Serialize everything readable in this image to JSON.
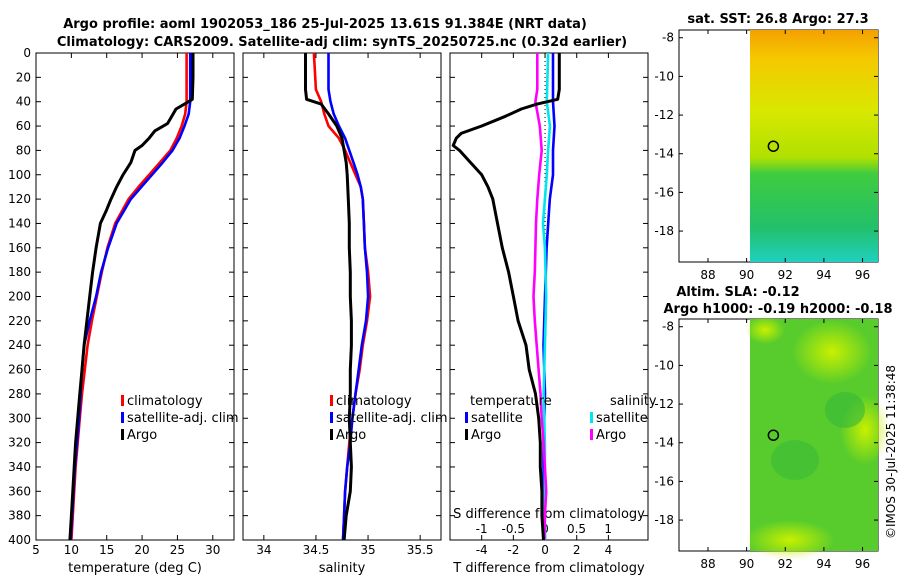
{
  "title_line1": "Argo profile: aoml 1902053_186 25-Jul-2025 13.61S 91.384E (NRT data)",
  "title_line2": "Climatology: CARS2009. Satellite-adj clim: synTS_20250725.nc (0.32d earlier)",
  "credit": "©IMOS 30-Jul-2025 11:38:48",
  "colors": {
    "climatology": "#ff0000",
    "satellite": "#0000ff",
    "argo": "#000000",
    "sal_satellite": "#00e5ee",
    "sal_argo": "#ff00ff"
  },
  "chart_data": [
    {
      "type": "line",
      "name": "temperature",
      "xlabel": "temperature (deg C)",
      "ylabel": "",
      "xlim": [
        5,
        33
      ],
      "ylim": [
        400,
        0
      ],
      "xticks": [
        "5",
        "10",
        "15",
        "20",
        "25",
        "30"
      ],
      "yticks": [
        "0",
        "20",
        "40",
        "60",
        "80",
        "100",
        "120",
        "140",
        "160",
        "180",
        "200",
        "220",
        "240",
        "260",
        "280",
        "300",
        "320",
        "340",
        "360",
        "380",
        "400"
      ],
      "legend": [
        "climatology",
        "satellite-adj. clim",
        "Argo"
      ],
      "series": [
        {
          "name": "climatology",
          "depth": [
            0,
            40,
            50,
            60,
            70,
            80,
            90,
            100,
            110,
            120,
            140,
            160,
            180,
            200,
            220,
            240,
            260,
            280,
            300,
            320,
            340,
            360,
            380,
            400
          ],
          "values": [
            26.3,
            26.3,
            26.1,
            25.6,
            24.9,
            24.0,
            22.5,
            21.0,
            19.5,
            18.1,
            16.2,
            15.1,
            14.3,
            13.6,
            12.9,
            12.3,
            11.9,
            11.5,
            11.2,
            10.9,
            10.6,
            10.4,
            10.2,
            10.0
          ]
        },
        {
          "name": "satellite-adj. clim",
          "depth": [
            0,
            40,
            50,
            60,
            70,
            80,
            90,
            100,
            110,
            120,
            140,
            160,
            180,
            200,
            220,
            240,
            260,
            280,
            300,
            320,
            340,
            360,
            380,
            400
          ],
          "values": [
            26.8,
            26.8,
            26.6,
            26.0,
            25.3,
            24.3,
            22.9,
            21.4,
            19.9,
            18.4,
            16.4,
            15.2,
            14.2,
            13.5,
            12.6,
            11.8,
            11.5,
            11.3,
            11.1,
            10.8,
            10.5,
            10.3,
            10.1,
            9.9
          ]
        },
        {
          "name": "Argo",
          "depth": [
            0,
            20,
            38,
            42,
            46,
            52,
            58,
            64,
            70,
            76,
            80,
            90,
            100,
            110,
            120,
            130,
            140,
            160,
            180,
            200,
            220,
            240,
            260,
            280,
            300,
            320,
            340,
            360,
            380,
            400
          ],
          "values": [
            27.2,
            27.2,
            27.1,
            26.0,
            24.8,
            24.2,
            23.6,
            21.8,
            21.0,
            20.0,
            19.0,
            18.4,
            17.3,
            16.4,
            15.6,
            14.9,
            14.1,
            13.5,
            13.0,
            12.6,
            12.2,
            11.8,
            11.5,
            11.2,
            10.9,
            10.6,
            10.4,
            10.2,
            10.0,
            9.8
          ]
        }
      ]
    },
    {
      "type": "line",
      "name": "salinity",
      "xlabel": "salinity",
      "ylabel": "",
      "xlim": [
        33.8,
        35.7
      ],
      "ylim": [
        400,
        0
      ],
      "xticks": [
        "34",
        "34.5",
        "35",
        "35.5"
      ],
      "legend": [
        "climatology",
        "satellite-adj. clim",
        "Argo"
      ],
      "series": [
        {
          "name": "climatology",
          "depth": [
            0,
            30,
            40,
            50,
            60,
            70,
            80,
            90,
            100,
            110,
            120,
            140,
            160,
            180,
            200,
            220,
            240,
            260,
            280,
            300,
            320,
            340,
            360,
            380,
            400
          ],
          "values": [
            34.48,
            34.5,
            34.55,
            34.58,
            34.62,
            34.72,
            34.78,
            34.83,
            34.88,
            34.93,
            34.95,
            34.96,
            34.97,
            35.0,
            35.02,
            34.99,
            34.95,
            34.92,
            34.88,
            34.85,
            34.82,
            34.8,
            34.78,
            34.77,
            34.76
          ]
        },
        {
          "name": "satellite-adj. clim",
          "depth": [
            0,
            30,
            40,
            50,
            60,
            70,
            80,
            90,
            100,
            110,
            120,
            140,
            160,
            180,
            200,
            220,
            240,
            260,
            280,
            300,
            320,
            340,
            360,
            380,
            400
          ],
          "values": [
            34.62,
            34.62,
            34.64,
            34.67,
            34.72,
            34.78,
            34.82,
            34.86,
            34.9,
            34.93,
            34.95,
            34.96,
            34.97,
            34.99,
            35.0,
            34.98,
            34.94,
            34.91,
            34.88,
            34.85,
            34.83,
            34.8,
            34.78,
            34.77,
            34.76
          ]
        },
        {
          "name": "Argo",
          "depth": [
            0,
            30,
            38,
            42,
            50,
            60,
            70,
            80,
            90,
            100,
            120,
            140,
            160,
            180,
            200,
            220,
            240,
            260,
            280,
            300,
            320,
            340,
            360,
            380,
            400
          ],
          "values": [
            34.4,
            34.4,
            34.41,
            34.55,
            34.62,
            34.7,
            34.75,
            34.77,
            34.79,
            34.8,
            34.81,
            34.82,
            34.82,
            34.83,
            34.83,
            34.84,
            34.84,
            34.83,
            34.83,
            34.82,
            34.83,
            34.84,
            34.83,
            34.79,
            34.77
          ]
        }
      ]
    },
    {
      "type": "line",
      "name": "difference",
      "xlabel": "T difference from climatology",
      "xlabel2": "S difference from climatology",
      "xlim": [
        -6,
        6.5
      ],
      "s_xlim": [
        -1.5,
        1.63
      ],
      "ylim": [
        400,
        0
      ],
      "xticks": [
        "-4",
        "-2",
        "0",
        "2",
        "4"
      ],
      "s_xticks": [
        "-1",
        "-0.5",
        "0",
        "0.5",
        "1"
      ],
      "legend_temperature_title": "temperature",
      "legend_salinity_title": "salinity",
      "legend_temperature": [
        "satellite",
        "Argo"
      ],
      "legend_salinity": [
        "satellite",
        "Argo"
      ],
      "series": [
        {
          "name": "temperature satellite",
          "depth": [
            0,
            40,
            60,
            80,
            100,
            120,
            140,
            160,
            200,
            240,
            280,
            320,
            360,
            400
          ],
          "values": [
            0.5,
            0.5,
            0.6,
            0.5,
            0.5,
            0.3,
            0.2,
            0.1,
            0.0,
            -0.1,
            0.0,
            -0.1,
            -0.1,
            0.0
          ]
        },
        {
          "name": "temperature Argo",
          "depth": [
            0,
            30,
            38,
            42,
            46,
            52,
            60,
            66,
            70,
            76,
            80,
            90,
            100,
            110,
            120,
            140,
            160,
            180,
            200,
            220,
            240,
            260,
            280,
            300,
            320,
            340,
            360,
            380,
            400
          ],
          "values": [
            0.9,
            0.9,
            0.8,
            -0.5,
            -1.5,
            -2.5,
            -4.0,
            -5.3,
            -5.6,
            -5.8,
            -5.4,
            -4.7,
            -4.0,
            -3.6,
            -3.3,
            -3.0,
            -2.7,
            -2.3,
            -2.0,
            -1.7,
            -1.2,
            -1.0,
            -0.6,
            -0.4,
            -0.3,
            -0.3,
            -0.2,
            -0.2,
            -0.1
          ]
        },
        {
          "name": "salinity satellite",
          "depth": [
            0,
            40,
            60,
            80,
            100,
            120,
            140,
            160,
            200,
            240,
            280,
            320,
            360,
            400
          ],
          "values": [
            0.05,
            0.03,
            0.08,
            0.05,
            0.03,
            0.0,
            -0.03,
            0.0,
            0.02,
            0.0,
            -0.02,
            0.0,
            0.0,
            0.0
          ]
        },
        {
          "name": "salinity Argo",
          "depth": [
            0,
            30,
            40,
            60,
            80,
            100,
            120,
            140,
            160,
            180,
            200,
            220,
            240,
            260,
            280,
            300,
            320,
            340,
            360,
            380,
            400
          ],
          "values": [
            -0.12,
            -0.12,
            -0.15,
            -0.08,
            -0.05,
            -0.09,
            -0.12,
            -0.14,
            -0.15,
            -0.16,
            -0.18,
            -0.16,
            -0.13,
            -0.1,
            -0.07,
            -0.05,
            -0.02,
            0.0,
            0.02,
            0.0,
            -0.01
          ]
        }
      ]
    },
    {
      "type": "heatmap",
      "name": "sst-map",
      "title": "sat. SST: 26.8 Argo: 27.3",
      "xlim": [
        86.5,
        96.8
      ],
      "ylim": [
        -19.6,
        -7.6
      ],
      "xticks": [
        "88",
        "90",
        "92",
        "94",
        "96"
      ],
      "yticks": [
        "-8",
        "-10",
        "-12",
        "-14",
        "-16",
        "-18"
      ],
      "marker": {
        "lon": 91.384,
        "lat": -13.61
      },
      "data_start_lon": 90
    },
    {
      "type": "heatmap",
      "name": "sla-map",
      "title_line1": "Altim. SLA: -0.12",
      "title_line2": "Argo h1000: -0.19 h2000: -0.18",
      "xlim": [
        86.5,
        96.8
      ],
      "ylim": [
        -19.6,
        -7.6
      ],
      "xticks": [
        "88",
        "90",
        "92",
        "94",
        "96"
      ],
      "yticks": [
        "-8",
        "-10",
        "-12",
        "-14",
        "-16",
        "-18"
      ],
      "marker": {
        "lon": 91.384,
        "lat": -13.61
      },
      "data_start_lon": 90
    }
  ]
}
